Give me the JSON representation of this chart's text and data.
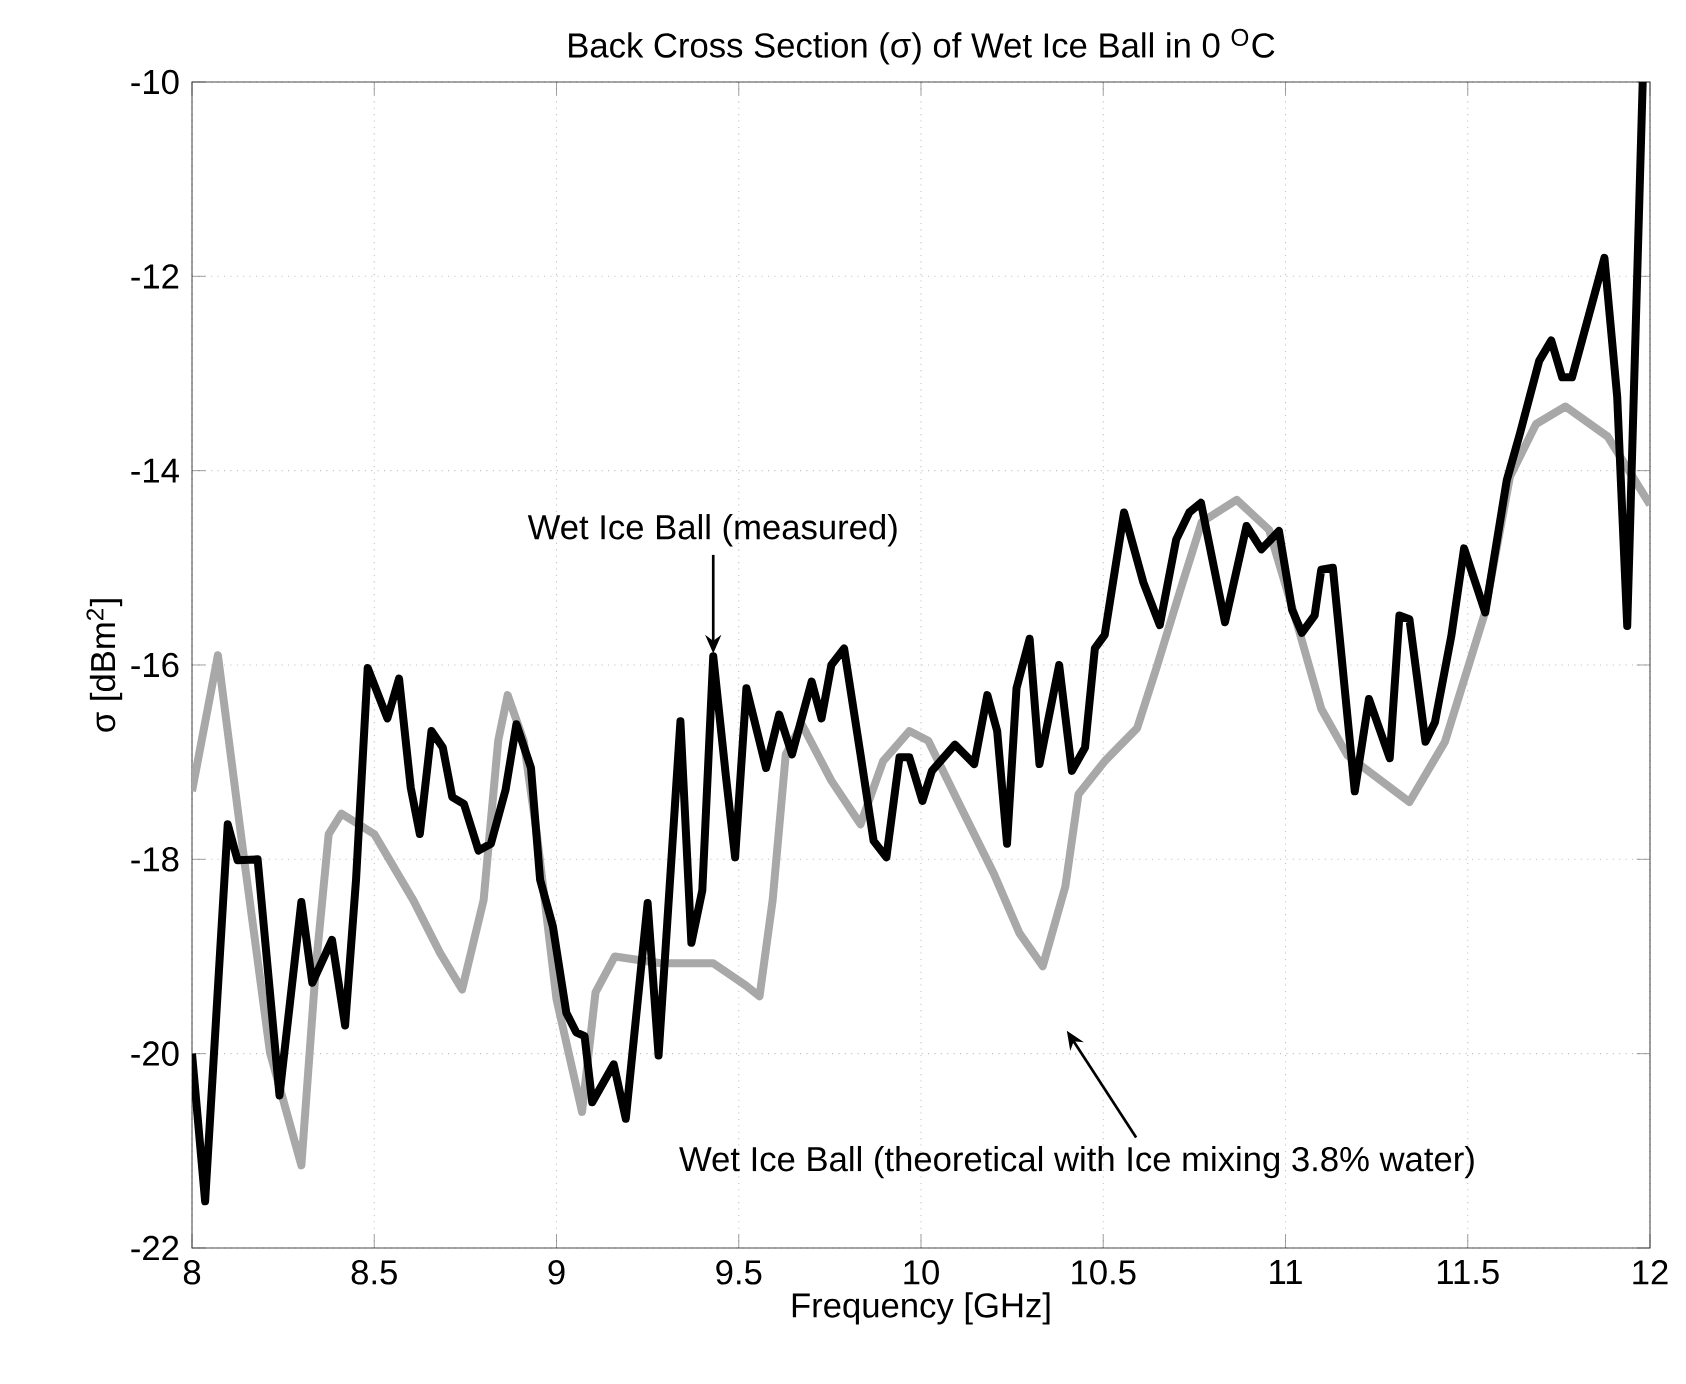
{
  "chart_data": {
    "type": "line",
    "title": "Back Cross Section (σ) of Wet Ice Ball in 0 $^{O}$C",
    "xlabel": "Frequency [GHz]",
    "ylabel": "σ [dBm$^{2}$]",
    "xlim": [
      8,
      12
    ],
    "ylim": [
      -22,
      -10
    ],
    "xticks": [
      8,
      8.5,
      9,
      9.5,
      10,
      10.5,
      11,
      11.5,
      12
    ],
    "yticks": [
      -22,
      -20,
      -18,
      -16,
      -14,
      -12,
      -10
    ],
    "grid": true,
    "marker": "none",
    "line_style": "solid",
    "series": [
      {
        "color": "#a8a8a8",
        "x": [
          8.0,
          8.071,
          8.143,
          8.214,
          8.3,
          8.34,
          8.375,
          8.41,
          8.5,
          8.607,
          8.68,
          8.741,
          8.8,
          8.84,
          8.866,
          8.91,
          8.946,
          9.0,
          9.07,
          9.107,
          9.16,
          9.286,
          9.43,
          9.52,
          9.557,
          9.593,
          9.629,
          9.673,
          9.754,
          9.834,
          9.896,
          9.968,
          10.02,
          10.11,
          10.2,
          10.27,
          10.334,
          10.396,
          10.432,
          10.504,
          10.593,
          10.646,
          10.718,
          10.77,
          10.866,
          10.955,
          11.036,
          11.098,
          11.17,
          11.34,
          11.4375,
          11.545,
          11.616,
          11.6875,
          11.768,
          11.884,
          12.0
        ],
        "values": [
          -17.3,
          -15.9,
          -18.0,
          -19.99,
          -21.15,
          -19.1,
          -17.74,
          -17.53,
          -17.74,
          -18.42,
          -18.96,
          -19.34,
          -18.42,
          -16.78,
          -16.31,
          -16.78,
          -17.74,
          -19.44,
          -20.6,
          -19.37,
          -19.0,
          -19.07,
          -19.07,
          -19.3,
          -19.41,
          -18.42,
          -16.92,
          -16.61,
          -17.19,
          -17.64,
          -16.99,
          -16.68,
          -16.78,
          -17.47,
          -18.15,
          -18.76,
          -19.1,
          -18.28,
          -17.33,
          -16.99,
          -16.65,
          -16.03,
          -15.15,
          -14.53,
          -14.3,
          -14.61,
          -15.63,
          -16.45,
          -16.93,
          -17.41,
          -16.79,
          -15.49,
          -14.06,
          -13.52,
          -13.34,
          -13.65,
          -14.35
        ]
      },
      {
        "color": "#000000",
        "x": [
          8.0,
          8.036,
          8.098,
          8.125,
          8.18,
          8.24,
          8.3,
          8.33,
          8.384,
          8.42,
          8.45,
          8.482,
          8.536,
          8.568,
          8.6,
          8.625,
          8.657,
          8.688,
          8.714,
          8.746,
          8.786,
          8.82,
          8.86,
          8.89,
          8.93,
          8.955,
          8.99,
          9.027,
          9.054,
          9.077,
          9.098,
          9.157,
          9.19,
          9.25,
          9.28,
          9.34,
          9.37,
          9.4,
          9.43,
          9.464,
          9.49,
          9.521,
          9.575,
          9.611,
          9.646,
          9.7,
          9.727,
          9.754,
          9.789,
          9.834,
          9.87,
          9.905,
          9.941,
          9.968,
          10.004,
          10.03,
          10.093,
          10.146,
          10.182,
          10.209,
          10.236,
          10.262,
          10.298,
          10.325,
          10.379,
          10.414,
          10.45,
          10.477,
          10.504,
          10.557,
          10.61,
          10.655,
          10.7,
          10.736,
          10.768,
          10.834,
          10.893,
          10.934,
          10.982,
          11.018,
          11.045,
          11.08,
          11.098,
          11.13,
          11.19,
          11.229,
          11.286,
          11.3125,
          11.34,
          11.384,
          11.41,
          11.455,
          11.49,
          11.548,
          11.607,
          11.643,
          11.696,
          11.729,
          11.759,
          11.786,
          11.875,
          11.91,
          11.9375,
          11.98
        ],
        "values": [
          -20.0,
          -21.52,
          -17.64,
          -18.01,
          -18.0,
          -20.43,
          -18.44,
          -19.27,
          -18.83,
          -19.71,
          -18.21,
          -16.03,
          -16.55,
          -16.14,
          -17.26,
          -17.74,
          -16.68,
          -16.85,
          -17.36,
          -17.43,
          -17.91,
          -17.84,
          -17.29,
          -16.61,
          -17.06,
          -18.21,
          -18.69,
          -19.58,
          -19.78,
          -19.82,
          -20.5,
          -20.11,
          -20.67,
          -18.45,
          -20.02,
          -16.58,
          -18.86,
          -18.32,
          -15.91,
          -17.12,
          -17.98,
          -16.24,
          -17.06,
          -16.51,
          -16.92,
          -16.17,
          -16.55,
          -16.0,
          -15.83,
          -16.92,
          -17.81,
          -17.98,
          -16.95,
          -16.95,
          -17.4,
          -17.09,
          -16.82,
          -17.02,
          -16.31,
          -16.68,
          -17.84,
          -16.24,
          -15.73,
          -17.02,
          -16.0,
          -17.09,
          -16.85,
          -15.83,
          -15.69,
          -14.43,
          -15.15,
          -15.59,
          -14.71,
          -14.43,
          -14.33,
          -15.56,
          -14.57,
          -14.81,
          -14.62,
          -15.43,
          -15.67,
          -15.49,
          -15.02,
          -15.0,
          -17.3,
          -16.35,
          -16.96,
          -15.49,
          -15.53,
          -16.79,
          -16.59,
          -15.7,
          -14.8,
          -15.46,
          -14.1,
          -13.62,
          -12.87,
          -12.66,
          -13.04,
          -13.04,
          -11.81,
          -13.24,
          -15.6,
          -10.0
        ]
      }
    ],
    "annotations": [
      {
        "text": "Wet Ice Ball (measured)",
        "x": 9.43,
        "y": -15.91
      },
      "Wet Ice Ball (theoretical with Ice mixing 3.8% water)"
    ]
  }
}
